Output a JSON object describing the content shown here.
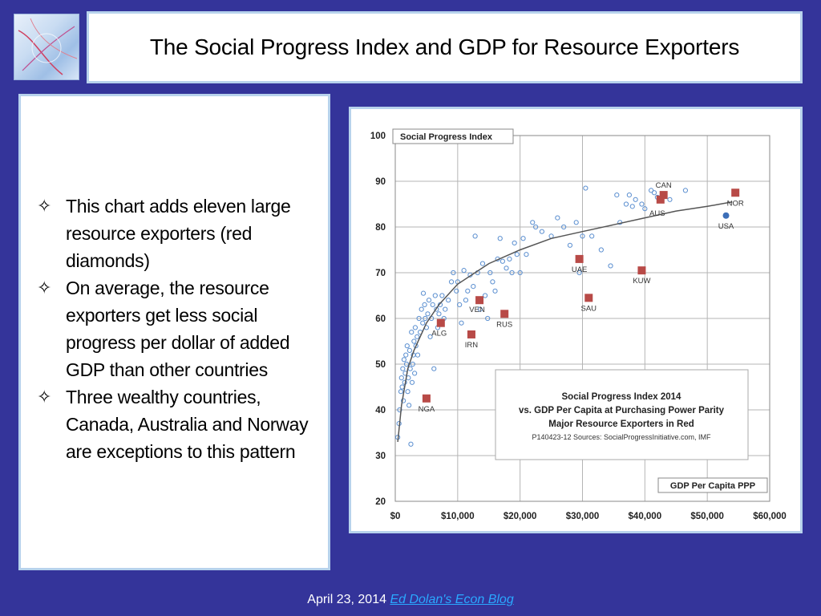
{
  "slide": {
    "title": "The Social Progress Index and GDP for Resource Exporters",
    "bullets": [
      "This chart adds eleven large resource exporters (red diamonds)",
      "On average, the resource exporters get less social progress per dollar of added GDP than other countries",
      "Three wealthy countries, Canada, Australia and Norway are exceptions to this pattern"
    ],
    "bullet_symbol": "✧",
    "footer_date": "April 23, 2014",
    "footer_link": "Ed Dolan's Econ Blog"
  },
  "colors": {
    "background": "#34349a",
    "frame_border": "#b7d2ec",
    "resource_marker": "#b84a47",
    "other_marker": "#5b8fd0",
    "usa_marker": "#3d6fb8",
    "trend_line": "#555555",
    "link": "#2aa8ff"
  },
  "chart_data": {
    "type": "scatter",
    "ylabel": "Social Progress Index",
    "xlabel": "GDP Per Capita PPP",
    "xlim": [
      0,
      60000
    ],
    "ylim": [
      20,
      100
    ],
    "xticks": [
      "$0",
      "$10,000",
      "$20,000",
      "$30,000",
      "$40,000",
      "$50,000",
      "$60,000"
    ],
    "xtick_values": [
      0,
      10000,
      20000,
      30000,
      40000,
      50000,
      60000
    ],
    "yticks": [
      "20",
      "30",
      "40",
      "50",
      "60",
      "70",
      "80",
      "90",
      "100"
    ],
    "ytick_values": [
      20,
      30,
      40,
      50,
      60,
      70,
      80,
      90,
      100
    ],
    "grid": true,
    "annotation": {
      "lines": [
        "Social Progress Index 2014",
        "vs. GDP Per Capita at Purchasing Power Parity",
        "Major Resource Exporters in Red"
      ],
      "source": "P140423-12 Sources: SocialProgressInitiative.com, IMF"
    },
    "resource_exporters": [
      {
        "label": "NGA",
        "x": 5000,
        "y": 42.5
      },
      {
        "label": "ALG",
        "x": 7300,
        "y": 59
      },
      {
        "label": "IRN",
        "x": 12200,
        "y": 56.5
      },
      {
        "label": "VEN",
        "x": 13500,
        "y": 64
      },
      {
        "label": "RUS",
        "x": 17500,
        "y": 61
      },
      {
        "label": "UAE",
        "x": 29500,
        "y": 73
      },
      {
        "label": "SAU",
        "x": 31000,
        "y": 64.5
      },
      {
        "label": "KUW",
        "x": 39500,
        "y": 70.5
      },
      {
        "label": "CAN",
        "x": 43000,
        "y": 87
      },
      {
        "label": "AUS",
        "x": 42500,
        "y": 86
      },
      {
        "label": "NOR",
        "x": 54500,
        "y": 87.5
      }
    ],
    "usa": {
      "label": "USA",
      "x": 53000,
      "y": 82.5
    },
    "other_countries": [
      [
        400,
        34
      ],
      [
        600,
        37
      ],
      [
        700,
        40
      ],
      [
        900,
        44
      ],
      [
        1000,
        47
      ],
      [
        1100,
        45
      ],
      [
        1200,
        49
      ],
      [
        1300,
        42
      ],
      [
        1400,
        51
      ],
      [
        1500,
        46
      ],
      [
        1600,
        48
      ],
      [
        1700,
        52
      ],
      [
        1800,
        50
      ],
      [
        1900,
        54
      ],
      [
        2000,
        44
      ],
      [
        2100,
        47
      ],
      [
        2200,
        41
      ],
      [
        2300,
        53
      ],
      [
        2400,
        49
      ],
      [
        2500,
        32.5
      ],
      [
        2600,
        57
      ],
      [
        2700,
        46
      ],
      [
        2800,
        50
      ],
      [
        2900,
        52
      ],
      [
        3000,
        55
      ],
      [
        3100,
        48
      ],
      [
        3200,
        58
      ],
      [
        3300,
        54
      ],
      [
        3500,
        56
      ],
      [
        3600,
        52
      ],
      [
        3800,
        60
      ],
      [
        4000,
        57
      ],
      [
        4200,
        62
      ],
      [
        4400,
        59
      ],
      [
        4500,
        65.5
      ],
      [
        4700,
        63
      ],
      [
        4800,
        60
      ],
      [
        5000,
        58
      ],
      [
        5200,
        61
      ],
      [
        5400,
        64
      ],
      [
        5600,
        56
      ],
      [
        5800,
        60
      ],
      [
        6000,
        63
      ],
      [
        6200,
        49
      ],
      [
        6400,
        65
      ],
      [
        6600,
        62
      ],
      [
        6800,
        58
      ],
      [
        7000,
        61
      ],
      [
        7200,
        63
      ],
      [
        7500,
        65
      ],
      [
        7800,
        60
      ],
      [
        8000,
        62
      ],
      [
        8500,
        64
      ],
      [
        9000,
        68
      ],
      [
        9300,
        70
      ],
      [
        9800,
        66
      ],
      [
        10000,
        68
      ],
      [
        10300,
        63
      ],
      [
        10600,
        59
      ],
      [
        11000,
        70.5
      ],
      [
        11300,
        64
      ],
      [
        11600,
        66
      ],
      [
        12000,
        69.5
      ],
      [
        12500,
        67
      ],
      [
        12800,
        78
      ],
      [
        13200,
        70
      ],
      [
        13600,
        62
      ],
      [
        14000,
        72
      ],
      [
        14400,
        65
      ],
      [
        14800,
        60
      ],
      [
        15200,
        70
      ],
      [
        15600,
        68
      ],
      [
        16000,
        66
      ],
      [
        16400,
        73
      ],
      [
        16800,
        77.5
      ],
      [
        17200,
        72.5
      ],
      [
        17800,
        71
      ],
      [
        18300,
        73
      ],
      [
        18700,
        70
      ],
      [
        19100,
        76.5
      ],
      [
        19500,
        74
      ],
      [
        20000,
        70
      ],
      [
        20500,
        77.5
      ],
      [
        21000,
        74
      ],
      [
        22000,
        81
      ],
      [
        22500,
        80
      ],
      [
        23500,
        79
      ],
      [
        25000,
        78
      ],
      [
        26000,
        82
      ],
      [
        27000,
        80
      ],
      [
        28000,
        76
      ],
      [
        29000,
        81
      ],
      [
        29500,
        70
      ],
      [
        30000,
        78
      ],
      [
        30500,
        88.5
      ],
      [
        31500,
        78
      ],
      [
        33000,
        75
      ],
      [
        34500,
        71.5
      ],
      [
        35500,
        87
      ],
      [
        36000,
        81
      ],
      [
        37000,
        85
      ],
      [
        37500,
        87
      ],
      [
        38000,
        84.5
      ],
      [
        38500,
        86
      ],
      [
        39500,
        85
      ],
      [
        40000,
        84
      ],
      [
        41000,
        88
      ],
      [
        41500,
        87.5
      ],
      [
        42000,
        86.5
      ],
      [
        44000,
        86
      ],
      [
        46500,
        88
      ]
    ],
    "trend": {
      "label": "",
      "points": [
        [
          400,
          33
        ],
        [
          1000,
          41
        ],
        [
          2000,
          49
        ],
        [
          3000,
          53
        ],
        [
          5000,
          59
        ],
        [
          7000,
          63
        ],
        [
          10000,
          67.5
        ],
        [
          15000,
          72
        ],
        [
          20000,
          75
        ],
        [
          25000,
          77.5
        ],
        [
          30000,
          79
        ],
        [
          35000,
          80.5
        ],
        [
          40000,
          82
        ],
        [
          45000,
          83.5
        ],
        [
          50000,
          84.5
        ],
        [
          54000,
          85.5
        ]
      ]
    }
  }
}
